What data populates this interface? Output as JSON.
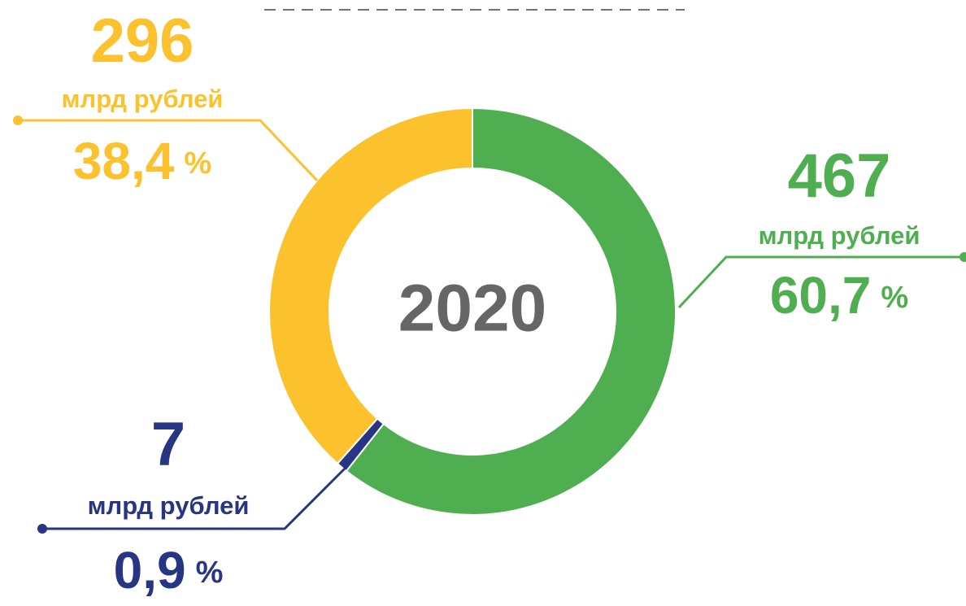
{
  "chart_data": {
    "type": "pie",
    "donut": true,
    "center_label": "2020",
    "categories": [
      null,
      null,
      null
    ],
    "values": [
      467,
      7,
      296
    ],
    "percents": [
      60.7,
      0.9,
      38.4
    ],
    "percent_labels": [
      "60,7",
      "0,9",
      "38,4"
    ],
    "unit": "млрд рублей",
    "percent_sign": "%",
    "colors": [
      "#4fae4f",
      "#283583",
      "#fcc22e"
    ]
  }
}
